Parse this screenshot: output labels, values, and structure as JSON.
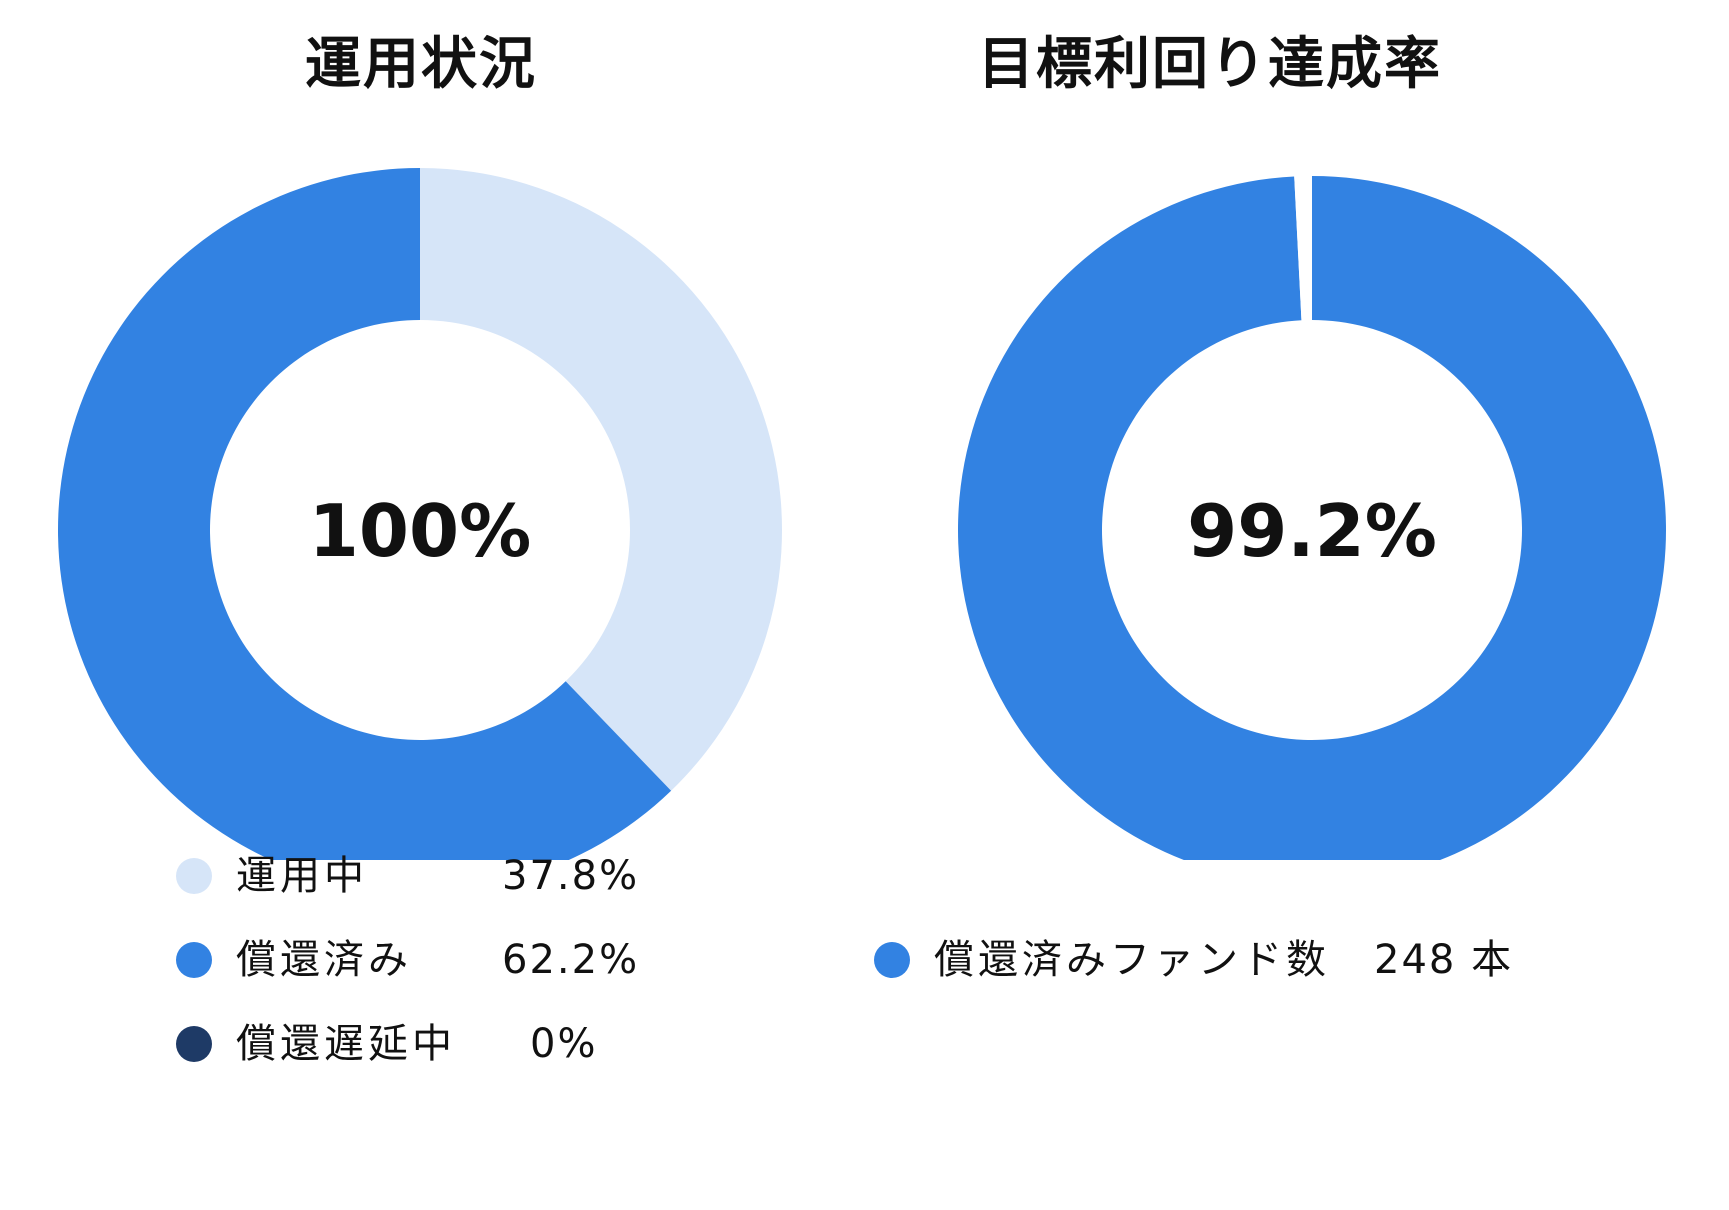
{
  "colors": {
    "in_operation": "#d6e5f8",
    "redeemed": "#3282e2",
    "delayed": "#1e3a66",
    "background": "#ffffff"
  },
  "chart_data": [
    {
      "type": "pie",
      "title": "運用状況",
      "center_label": "100%",
      "slices": [
        {
          "name": "運用中",
          "value": 37.8,
          "label": "37.8%"
        },
        {
          "name": "償還済み",
          "value": 62.2,
          "label": "62.2%"
        },
        {
          "name": "償還遅延中",
          "value": 0,
          "label": "0%"
        }
      ],
      "legend_position": "bottom"
    },
    {
      "type": "pie",
      "title": "目標利回り達成率",
      "center_label": "99.2%",
      "slices": [
        {
          "name": "償還済みファンド数",
          "value": 99.2,
          "label": "248 本"
        },
        {
          "name": "",
          "value": 0.8,
          "label": ""
        }
      ],
      "legend_position": "bottom"
    }
  ]
}
